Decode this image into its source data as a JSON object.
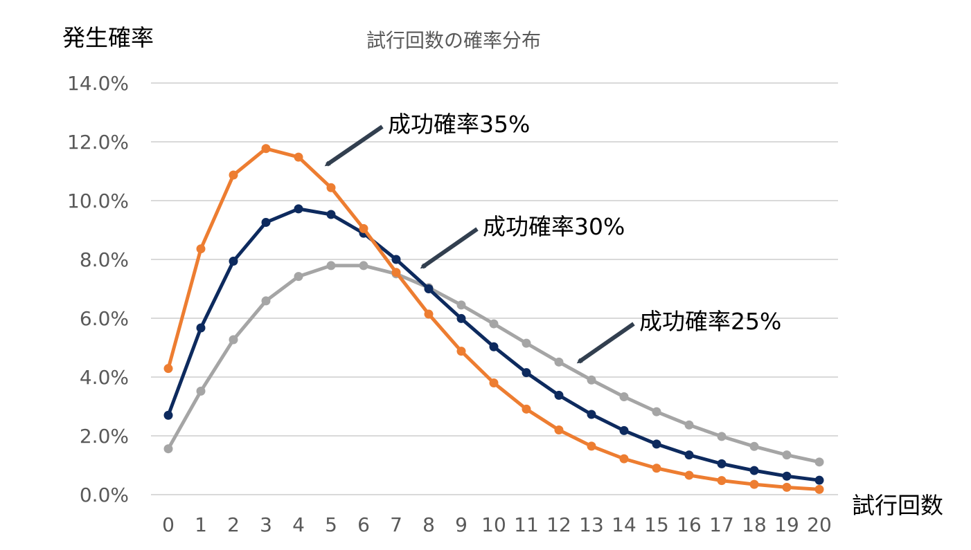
{
  "chart_data": {
    "type": "line",
    "title": "試行回数の確率分布",
    "ylabel": "発生確率",
    "xlabel": "試行回数",
    "ylim": [
      0,
      14
    ],
    "y_ticks": [
      0,
      2,
      4,
      6,
      8,
      10,
      12,
      14
    ],
    "y_tick_labels": [
      "0.0%",
      "2.0%",
      "4.0%",
      "6.0%",
      "8.0%",
      "10.0%",
      "12.0%",
      "14.0%"
    ],
    "x": [
      0,
      1,
      2,
      3,
      4,
      5,
      6,
      7,
      8,
      9,
      10,
      11,
      12,
      13,
      14,
      15,
      16,
      17,
      18,
      19,
      20
    ],
    "x_tick_labels": [
      "0",
      "1",
      "2",
      "3",
      "4",
      "5",
      "6",
      "7",
      "8",
      "9",
      "10",
      "11",
      "12",
      "13",
      "14",
      "15",
      "16",
      "17",
      "18",
      "19",
      "20"
    ],
    "grid": true,
    "legend": "none",
    "series": [
      {
        "key": "p25",
        "color": "#a5a5a5",
        "values": [
          1.56,
          3.52,
          5.27,
          6.59,
          7.42,
          7.79,
          7.79,
          7.51,
          7.04,
          6.45,
          5.81,
          5.15,
          4.51,
          3.9,
          3.33,
          2.82,
          2.37,
          1.98,
          1.64,
          1.35,
          1.11
        ]
      },
      {
        "key": "p30",
        "color": "#0d2a5e",
        "values": [
          2.7,
          5.67,
          7.94,
          9.26,
          9.72,
          9.53,
          8.89,
          8.0,
          7.0,
          5.99,
          5.03,
          4.15,
          3.38,
          2.73,
          2.18,
          1.72,
          1.35,
          1.05,
          0.82,
          0.63,
          0.49
        ]
      },
      {
        "key": "p35",
        "color": "#ed7d31",
        "values": [
          4.29,
          8.36,
          10.87,
          11.77,
          11.48,
          10.44,
          9.05,
          7.56,
          6.14,
          4.88,
          3.8,
          2.91,
          2.2,
          1.65,
          1.22,
          0.9,
          0.66,
          0.48,
          0.35,
          0.25,
          0.18
        ]
      }
    ],
    "annotations": [
      {
        "text": "成功確率35%",
        "series": "p35"
      },
      {
        "text": "成功確率30%",
        "series": "p30"
      },
      {
        "text": "成功確率25%",
        "series": "p25"
      }
    ],
    "arrow_color": "#323f4f"
  }
}
